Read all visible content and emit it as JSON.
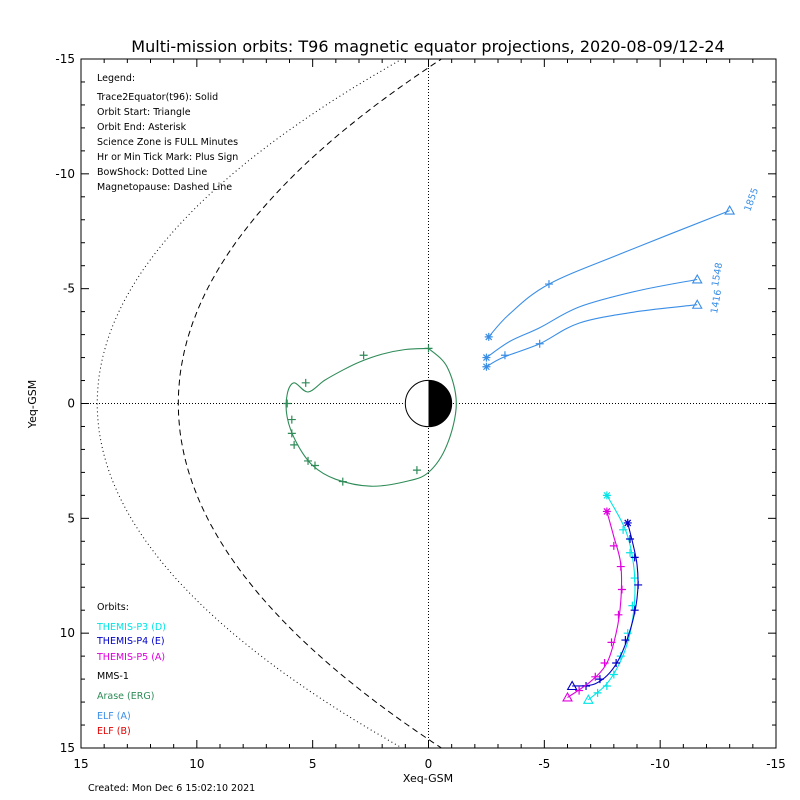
{
  "chart_data": {
    "type": "scatter",
    "title": "Multi-mission orbits: T96 magnetic equator projections, 2020-08-09/12-24",
    "xlabel": "Xeq-GSM",
    "ylabel": "Yeq-GSM",
    "xlim": [
      15,
      -15
    ],
    "ylim": [
      -15,
      15
    ],
    "x_ticks": [
      "15",
      "10",
      "5",
      "0",
      "-5",
      "-10",
      "-15"
    ],
    "y_ticks": [
      "-15",
      "-10",
      "-5",
      "0",
      "5",
      "10",
      "15"
    ],
    "x_tick_values": [
      15,
      10,
      5,
      0,
      -5,
      -10,
      -15
    ],
    "y_tick_values": [
      -15,
      -10,
      -5,
      0,
      5,
      10,
      15
    ],
    "grid": false,
    "legend": {
      "header": "Legend:",
      "lines": [
        "Trace2Equator(t96): Solid",
        "Orbit Start: Triangle",
        "Orbit End: Asterisk",
        "Science Zone is FULL Minutes",
        "Hr or Min Tick Mark: Plus Sign",
        "BowShock: Dotted Line",
        "Magnetopause: Dashed Line"
      ]
    },
    "orbits_legend": {
      "header": "Orbits:",
      "items": [
        {
          "label": "THEMIS-P3 (D)",
          "color": "#00e5e5"
        },
        {
          "label": "THEMIS-P4 (E)",
          "color": "#0000c8"
        },
        {
          "label": "THEMIS-P5 (A)",
          "color": "#e000e0"
        },
        {
          "label": "MMS-1",
          "color": "#000000"
        },
        {
          "label": "Arase (ERG)",
          "color": "#2e8b57"
        },
        {
          "label": "ELF (A)",
          "color": "#3a8ee6"
        },
        {
          "label": "ELF (B)",
          "color": "#e00000"
        }
      ]
    },
    "annotations": [
      "1855",
      "1416",
      "1548"
    ],
    "footer": "Created: Mon Dec  6 15:02:10 2021",
    "series": [
      {
        "name": "Arase (ERG)",
        "color": "#2e8b57",
        "closed": true,
        "points": [
          [
            0,
            -2.4
          ],
          [
            -0.8,
            -1.6
          ],
          [
            -1.2,
            0
          ],
          [
            -0.8,
            1.8
          ],
          [
            0,
            3.0
          ],
          [
            1.0,
            3.4
          ],
          [
            2.5,
            3.6
          ],
          [
            4.0,
            3.3
          ],
          [
            5.0,
            2.7
          ],
          [
            5.7,
            1.7
          ],
          [
            6.1,
            0.6
          ],
          [
            6.1,
            -0.4
          ],
          [
            5.8,
            -0.9
          ],
          [
            5.2,
            -0.5
          ],
          [
            4.5,
            -1.0
          ],
          [
            3.8,
            -1.4
          ],
          [
            3.0,
            -1.8
          ],
          [
            2.0,
            -2.15
          ],
          [
            1.0,
            -2.35
          ],
          [
            0,
            -2.4
          ]
        ],
        "ticks": [
          [
            0,
            -2.4
          ],
          [
            2.8,
            -2.1
          ],
          [
            5.3,
            -0.9
          ],
          [
            6.1,
            0
          ],
          [
            5.9,
            1.3
          ],
          [
            5.2,
            2.5
          ],
          [
            3.7,
            3.4
          ],
          [
            0.5,
            2.9
          ],
          [
            4.9,
            2.7
          ],
          [
            5.9,
            0.7
          ],
          [
            5.8,
            1.8
          ]
        ],
        "start": null,
        "end": null
      },
      {
        "name": "ELF (A) 1855",
        "color": "#3a8ee6",
        "points": [
          [
            -2.6,
            -2.9
          ],
          [
            -3.5,
            -3.9
          ],
          [
            -5.2,
            -5.2
          ],
          [
            -8.5,
            -6.6
          ],
          [
            -13.0,
            -8.4
          ]
        ],
        "ticks": [
          [
            -5.2,
            -5.2
          ]
        ],
        "start": [
          -13.0,
          -8.4
        ],
        "end": [
          -2.6,
          -2.9
        ]
      },
      {
        "name": "ELF (A) 1548",
        "color": "#3a8ee6",
        "points": [
          [
            -2.5,
            -2.0
          ],
          [
            -3.5,
            -2.7
          ],
          [
            -4.8,
            -3.3
          ],
          [
            -6.5,
            -4.2
          ],
          [
            -9.0,
            -4.9
          ],
          [
            -11.6,
            -5.4
          ]
        ],
        "ticks": [
          [
            -3.3,
            -2.1
          ]
        ],
        "start": [
          -11.6,
          -5.4
        ],
        "end": [
          -2.5,
          -2.0
        ]
      },
      {
        "name": "ELF (A) 1416",
        "color": "#3a8ee6",
        "points": [
          [
            -2.5,
            -1.6
          ],
          [
            -3.2,
            -2.0
          ],
          [
            -4.8,
            -2.6
          ],
          [
            -6.5,
            -3.5
          ],
          [
            -9.0,
            -4.0
          ],
          [
            -11.6,
            -4.3
          ]
        ],
        "ticks": [
          [
            -4.8,
            -2.6
          ]
        ],
        "start": [
          -11.6,
          -4.3
        ],
        "end": [
          -2.5,
          -1.6
        ]
      },
      {
        "name": "THEMIS-P3 (D)",
        "color": "#00e5e5",
        "points": [
          [
            -6.9,
            12.9
          ],
          [
            -7.7,
            12.2
          ],
          [
            -8.3,
            11.2
          ],
          [
            -8.7,
            10.0
          ],
          [
            -8.9,
            8.5
          ],
          [
            -8.85,
            7.0
          ],
          [
            -8.5,
            5.5
          ],
          [
            -7.7,
            4.0
          ]
        ],
        "ticks": [
          [
            -7.3,
            12.6
          ],
          [
            -7.7,
            12.3
          ],
          [
            -8.0,
            11.8
          ],
          [
            -8.3,
            11.0
          ],
          [
            -8.6,
            10.0
          ],
          [
            -8.8,
            8.8
          ],
          [
            -8.9,
            7.6
          ],
          [
            -8.7,
            6.5
          ],
          [
            -8.4,
            5.5
          ]
        ],
        "start": [
          -6.9,
          12.9
        ],
        "end": [
          -7.7,
          4.0
        ]
      },
      {
        "name": "THEMIS-P4 (E)",
        "color": "#0000c8",
        "points": [
          [
            -6.2,
            12.3
          ],
          [
            -7.2,
            12.2
          ],
          [
            -8.0,
            11.5
          ],
          [
            -8.6,
            10.2
          ],
          [
            -9.0,
            8.5
          ],
          [
            -9.0,
            7.0
          ],
          [
            -8.6,
            5.2
          ]
        ],
        "ticks": [
          [
            -6.8,
            12.3
          ],
          [
            -7.4,
            12.0
          ],
          [
            -8.1,
            11.3
          ],
          [
            -8.5,
            10.3
          ],
          [
            -8.9,
            9.0
          ],
          [
            -9.05,
            7.9
          ],
          [
            -8.9,
            6.7
          ],
          [
            -8.7,
            5.9
          ]
        ],
        "start": [
          -6.2,
          12.3
        ],
        "end": [
          -8.6,
          5.2
        ]
      },
      {
        "name": "THEMIS-P5 (A)",
        "color": "#e000e0",
        "points": [
          [
            -6.0,
            12.8
          ],
          [
            -7.0,
            12.1
          ],
          [
            -7.7,
            11.3
          ],
          [
            -8.1,
            10.0
          ],
          [
            -8.3,
            8.6
          ],
          [
            -8.3,
            7.0
          ],
          [
            -8.0,
            5.8
          ],
          [
            -7.7,
            4.7
          ]
        ],
        "ticks": [
          [
            -6.5,
            12.5
          ],
          [
            -7.2,
            11.9
          ],
          [
            -7.6,
            11.3
          ],
          [
            -7.9,
            10.4
          ],
          [
            -8.2,
            9.2
          ],
          [
            -8.35,
            8.1
          ],
          [
            -8.3,
            7.1
          ],
          [
            -8.0,
            6.2
          ]
        ],
        "start": [
          -6.0,
          12.8
        ],
        "end": [
          -7.7,
          4.7
        ]
      }
    ],
    "bowshock": {
      "nose": 14.3,
      "color": "#000000",
      "style": "dotted"
    },
    "magnetopause": {
      "nose": 10.8,
      "color": "#000000",
      "style": "dashed"
    }
  }
}
